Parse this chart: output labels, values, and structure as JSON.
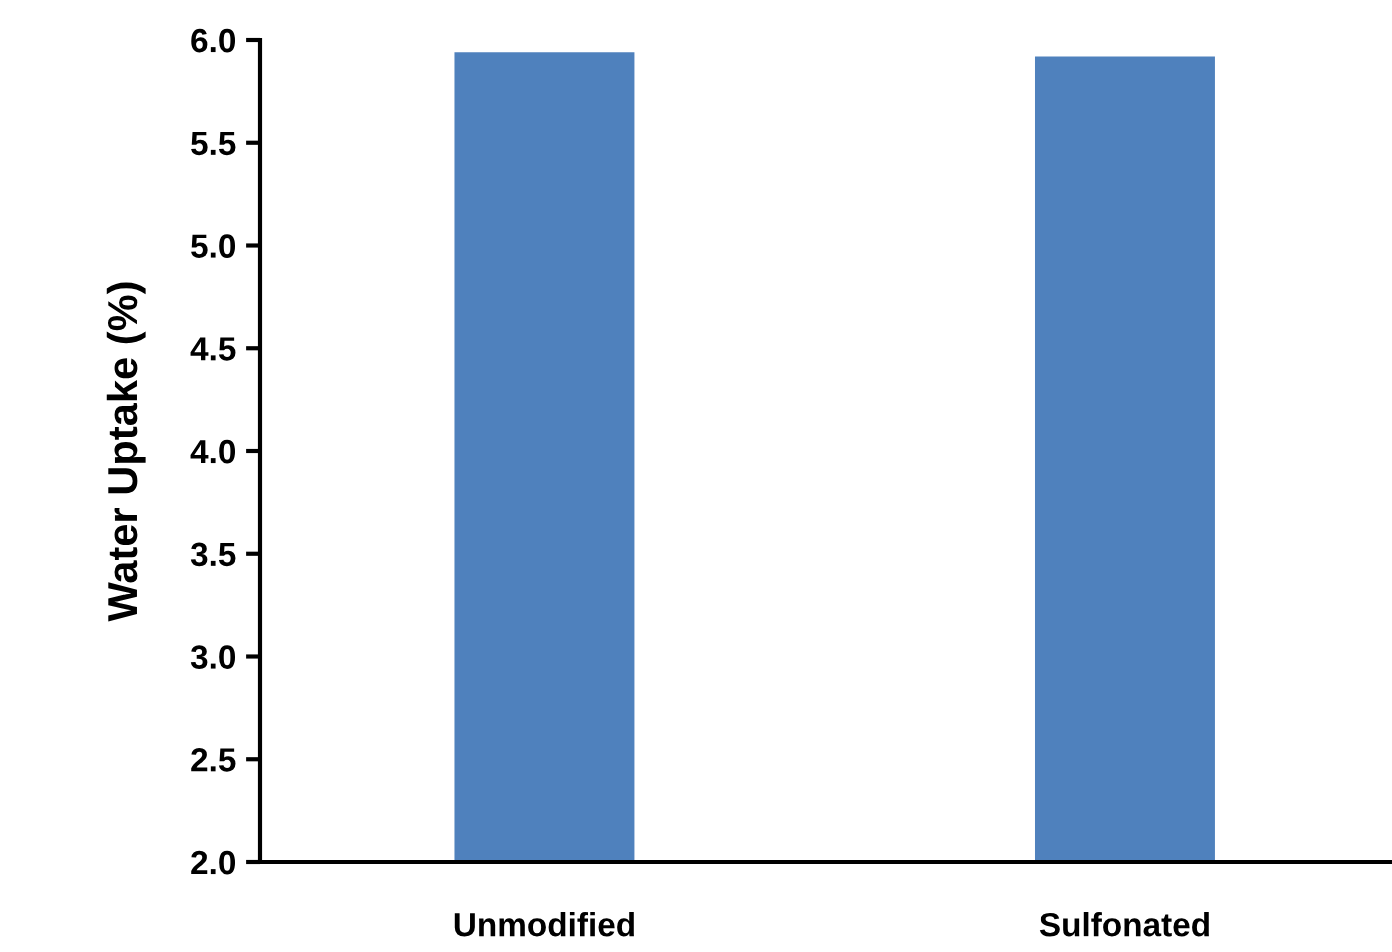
{
  "chart_data": {
    "type": "bar",
    "ylabel": "Water Uptake (%)",
    "categories": [
      "Unmodified",
      "Sulfonated"
    ],
    "values": [
      5.94,
      5.92
    ],
    "color": "#4f81bd",
    "ylim": [
      2.0,
      6.0
    ],
    "yticks": [
      {
        "value": 2.0,
        "label": "2.0"
      },
      {
        "value": 2.5,
        "label": "2.5"
      },
      {
        "value": 3.0,
        "label": "3.0"
      },
      {
        "value": 3.5,
        "label": "3.5"
      },
      {
        "value": 4.0,
        "label": "4.0"
      },
      {
        "value": 4.5,
        "label": "4.5"
      },
      {
        "value": 5.0,
        "label": "5.0"
      },
      {
        "value": 5.5,
        "label": "5.5"
      },
      {
        "value": 6.0,
        "label": "6.0"
      }
    ],
    "grid": false
  }
}
